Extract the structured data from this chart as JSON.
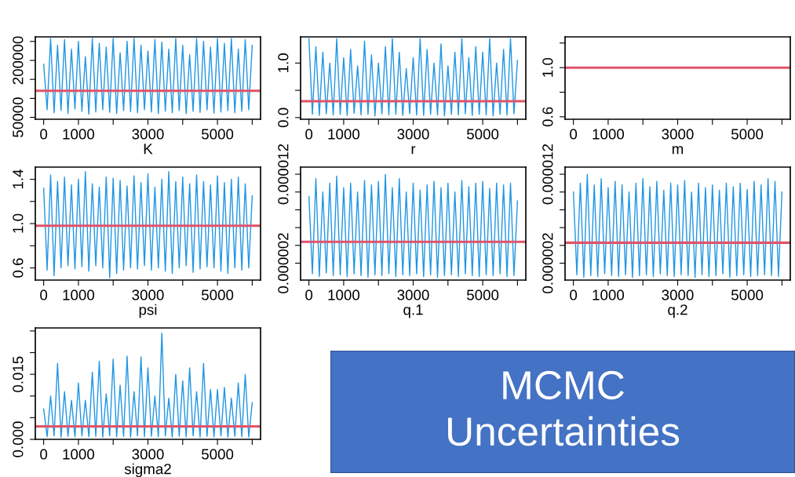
{
  "chart_data": [
    {
      "type": "line",
      "xlabel": "K",
      "xlim": [
        -240,
        6240
      ],
      "xticks": [
        0,
        1000,
        {
          "value": 2000,
          "label": null
        },
        3000,
        {
          "value": 4000,
          "label": null
        },
        5000,
        {
          "value": 6000,
          "label": null
        }
      ],
      "ylim": [
        45000,
        262000
      ],
      "yticks": [
        {
          "value": 50000,
          "label": "50000"
        },
        {
          "value": 100000,
          "label": null
        },
        {
          "value": 150000,
          "label": null
        },
        {
          "value": 200000,
          "label": "200000"
        },
        {
          "value": 250000,
          "label": null
        }
      ],
      "grid": false,
      "legend": false,
      "x": [
        0,
        100,
        200,
        300,
        400,
        500,
        600,
        700,
        800,
        900,
        1000,
        1100,
        1200,
        1300,
        1400,
        1500,
        1600,
        1700,
        1800,
        1900,
        2000,
        2100,
        2200,
        2300,
        2400,
        2500,
        2600,
        2700,
        2800,
        2900,
        3000,
        3100,
        3200,
        3300,
        3400,
        3500,
        3600,
        3700,
        3800,
        3900,
        4000,
        4100,
        4200,
        4300,
        4400,
        4500,
        4600,
        4700,
        4800,
        4900,
        5000,
        5100,
        5200,
        5300,
        5400,
        5500,
        5600,
        5700,
        5800,
        5900,
        6000
      ],
      "series": [
        {
          "color": "#2196e3",
          "values": [
            190000,
            70000,
            258000,
            62000,
            240000,
            68000,
            255000,
            60000,
            230000,
            72000,
            250000,
            66000,
            210000,
            58000,
            258000,
            64000,
            245000,
            70000,
            235000,
            63000,
            258000,
            60000,
            220000,
            68000,
            250000,
            65000,
            258000,
            62000,
            240000,
            70000,
            225000,
            64000,
            255000,
            60000,
            248000,
            66000,
            230000,
            62000,
            258000,
            68000,
            240000,
            60000,
            215000,
            66000,
            258000,
            63000,
            250000,
            70000,
            235000,
            61000,
            258000,
            64000,
            245000,
            68000,
            258000,
            62000,
            230000,
            66000,
            255000,
            70000,
            240000
          ]
        }
      ],
      "ref_lines": [
        {
          "axis": "y",
          "value": 120000,
          "color": "#df536b"
        }
      ]
    },
    {
      "type": "line",
      "xlabel": "r",
      "xlim": [
        -240,
        6240
      ],
      "xticks": [
        0,
        1000,
        {
          "value": 2000,
          "label": null
        },
        3000,
        {
          "value": 4000,
          "label": null
        },
        5000,
        {
          "value": 6000,
          "label": null
        }
      ],
      "ylim": [
        -0.03,
        1.48
      ],
      "yticks": [
        {
          "value": 0,
          "label": "0.0"
        },
        {
          "value": 0.5,
          "label": null
        },
        {
          "value": 1,
          "label": "1.0"
        }
      ],
      "grid": false,
      "legend": false,
      "x": [
        0,
        100,
        200,
        300,
        400,
        500,
        600,
        700,
        800,
        900,
        1000,
        1100,
        1200,
        1300,
        1400,
        1500,
        1600,
        1700,
        1800,
        1900,
        2000,
        2100,
        2200,
        2300,
        2400,
        2500,
        2600,
        2700,
        2800,
        2900,
        3000,
        3100,
        3200,
        3300,
        3400,
        3500,
        3600,
        3700,
        3800,
        3900,
        4000,
        4100,
        4200,
        4300,
        4400,
        4500,
        4600,
        4700,
        4800,
        4900,
        5000,
        5100,
        5200,
        5300,
        5400,
        5500,
        5600,
        5700,
        5800,
        5900,
        6000
      ],
      "series": [
        {
          "color": "#2196e3",
          "values": [
            1.45,
            0.06,
            1.3,
            0.04,
            1.2,
            0.07,
            1.0,
            0.05,
            1.45,
            0.06,
            1.1,
            0.04,
            1.25,
            0.08,
            0.95,
            0.05,
            1.4,
            0.06,
            1.15,
            0.03,
            1.0,
            0.07,
            1.3,
            0.05,
            1.45,
            0.06,
            1.2,
            0.04,
            0.9,
            0.07,
            1.1,
            0.05,
            1.45,
            0.04,
            1.25,
            0.06,
            1.0,
            0.05,
            1.35,
            0.03,
            0.95,
            0.06,
            1.2,
            0.05,
            1.45,
            0.07,
            1.1,
            0.04,
            1.3,
            0.06,
            1.2,
            0.05,
            1.45,
            0.03,
            1.0,
            0.06,
            1.25,
            0.05,
            1.45,
            0.07,
            1.05
          ]
        }
      ],
      "ref_lines": [
        {
          "axis": "y",
          "value": 0.3,
          "color": "#df536b"
        }
      ]
    },
    {
      "type": "line",
      "xlabel": "m",
      "xlim": [
        -240,
        6240
      ],
      "xticks": [
        0,
        1000,
        {
          "value": 2000,
          "label": null
        },
        3000,
        {
          "value": 4000,
          "label": null
        },
        5000,
        {
          "value": 6000,
          "label": null
        }
      ],
      "ylim": [
        0.58,
        1.25
      ],
      "yticks": [
        {
          "value": 0.6,
          "label": "0.6"
        },
        {
          "value": 0.8,
          "label": null
        },
        {
          "value": 1.0,
          "label": "1.0"
        },
        {
          "value": 1.2,
          "label": null
        }
      ],
      "grid": false,
      "legend": false,
      "ref_lines": [
        {
          "axis": "y",
          "value": 1.0,
          "color": "#df536b"
        }
      ]
    },
    {
      "type": "line",
      "xlabel": "psi",
      "xlim": [
        -240,
        6240
      ],
      "xticks": [
        0,
        1000,
        {
          "value": 2000,
          "label": null
        },
        3000,
        {
          "value": 4000,
          "label": null
        },
        5000,
        {
          "value": 6000,
          "label": null
        }
      ],
      "ylim": [
        0.49,
        1.51
      ],
      "yticks": [
        {
          "value": 0.6,
          "label": "0.6"
        },
        {
          "value": 0.8,
          "label": null
        },
        {
          "value": 1.0,
          "label": "1.0"
        },
        {
          "value": 1.2,
          "label": null
        },
        {
          "value": 1.4,
          "label": "1.4"
        }
      ],
      "grid": false,
      "legend": false,
      "x": [
        0,
        100,
        200,
        300,
        400,
        500,
        600,
        700,
        800,
        900,
        1000,
        1100,
        1200,
        1300,
        1400,
        1500,
        1600,
        1700,
        1800,
        1900,
        2000,
        2100,
        2200,
        2300,
        2400,
        2500,
        2600,
        2700,
        2800,
        2900,
        3000,
        3100,
        3200,
        3300,
        3400,
        3500,
        3600,
        3700,
        3800,
        3900,
        4000,
        4100,
        4200,
        4300,
        4400,
        4500,
        4600,
        4700,
        4800,
        4900,
        5000,
        5100,
        5200,
        5300,
        5400,
        5500,
        5600,
        5700,
        5800,
        5900,
        6000
      ],
      "series": [
        {
          "color": "#2196e3",
          "values": [
            1.32,
            0.58,
            1.44,
            0.53,
            1.38,
            0.6,
            1.42,
            0.62,
            1.35,
            0.59,
            1.4,
            0.61,
            1.47,
            0.57,
            1.36,
            0.62,
            1.33,
            0.6,
            1.42,
            0.51,
            1.41,
            0.55,
            1.39,
            0.58,
            1.34,
            0.6,
            1.43,
            0.59,
            1.37,
            0.62,
            1.45,
            0.58,
            1.33,
            0.6,
            1.4,
            0.57,
            1.47,
            0.55,
            1.38,
            0.6,
            1.42,
            0.62,
            1.36,
            0.56,
            1.44,
            0.59,
            1.38,
            0.61,
            1.35,
            0.6,
            1.43,
            0.57,
            1.37,
            0.55,
            1.4,
            0.6,
            1.42,
            0.58,
            1.36,
            0.6,
            1.25
          ]
        }
      ],
      "ref_lines": [
        {
          "axis": "y",
          "value": 0.98,
          "color": "#df536b"
        }
      ]
    },
    {
      "type": "line",
      "xlabel": "q.1",
      "xlim": [
        -240,
        6240
      ],
      "xticks": [
        0,
        1000,
        {
          "value": 2000,
          "label": null
        },
        3000,
        {
          "value": 4000,
          "label": null
        },
        5000,
        {
          "value": 6000,
          "label": null
        }
      ],
      "ylim": [
        1e-07,
        1.28e-05
      ],
      "yticks": [
        {
          "value": 2e-06,
          "label": "0.000002"
        },
        {
          "value": 4e-06,
          "label": null
        },
        {
          "value": 6e-06,
          "label": null
        },
        {
          "value": 8e-06,
          "label": null
        },
        {
          "value": 1e-05,
          "label": null
        },
        {
          "value": 1.2e-05,
          "label": "0.000012"
        }
      ],
      "grid": false,
      "legend": false,
      "x": [
        0,
        100,
        200,
        300,
        400,
        500,
        600,
        700,
        800,
        900,
        1000,
        1100,
        1200,
        1300,
        1400,
        1500,
        1600,
        1700,
        1800,
        1900,
        2000,
        2100,
        2200,
        2300,
        2400,
        2500,
        2600,
        2700,
        2800,
        2900,
        3000,
        3100,
        3200,
        3300,
        3400,
        3500,
        3600,
        3700,
        3800,
        3900,
        4000,
        4100,
        4200,
        4300,
        4400,
        4500,
        4600,
        4700,
        4800,
        4900,
        5000,
        5100,
        5200,
        5300,
        5400,
        5500,
        5600,
        5700,
        5800,
        5900,
        6000
      ],
      "series": [
        {
          "color": "#2196e3",
          "values": [
            9.5e-06,
            8e-07,
            1.15e-05,
            5e-07,
            1e-05,
            9e-07,
            1.1e-05,
            6e-07,
            1.18e-05,
            7e-07,
            1.05e-05,
            5e-07,
            1.1e-05,
            8e-07,
            1e-05,
            6e-07,
            1.13e-05,
            4e-07,
            1.08e-05,
            7e-07,
            1.12e-05,
            6e-07,
            1.2e-05,
            8e-07,
            1.05e-05,
            5e-07,
            1.15e-05,
            7e-07,
            1e-05,
            6e-07,
            1.1e-05,
            8e-07,
            1.02e-05,
            5e-07,
            1.08e-05,
            7e-07,
            1.12e-05,
            4e-07,
            1.05e-05,
            6e-07,
            1.1e-05,
            7e-07,
            1e-05,
            5e-07,
            1.13e-05,
            8e-07,
            1.06e-05,
            6e-07,
            1.1e-05,
            5e-07,
            1.12e-05,
            7e-07,
            1.04e-05,
            6e-07,
            1.1e-05,
            8e-07,
            1.08e-05,
            5e-07,
            1.1e-05,
            6e-07,
            9e-06
          ]
        }
      ],
      "ref_lines": [
        {
          "axis": "y",
          "value": 4.4e-06,
          "color": "#df536b"
        }
      ]
    },
    {
      "type": "line",
      "xlabel": "q.2",
      "xlim": [
        -240,
        6240
      ],
      "xticks": [
        0,
        1000,
        {
          "value": 2000,
          "label": null
        },
        3000,
        {
          "value": 4000,
          "label": null
        },
        5000,
        {
          "value": 6000,
          "label": null
        }
      ],
      "ylim": [
        1e-07,
        1.28e-05
      ],
      "yticks": [
        {
          "value": 2e-06,
          "label": "0.000002"
        },
        {
          "value": 4e-06,
          "label": null
        },
        {
          "value": 6e-06,
          "label": null
        },
        {
          "value": 8e-06,
          "label": null
        },
        {
          "value": 1e-05,
          "label": null
        },
        {
          "value": 1.2e-05,
          "label": "0.000012"
        }
      ],
      "grid": false,
      "legend": false,
      "x": [
        0,
        100,
        200,
        300,
        400,
        500,
        600,
        700,
        800,
        900,
        1000,
        1100,
        1200,
        1300,
        1400,
        1500,
        1600,
        1700,
        1800,
        1900,
        2000,
        2100,
        2200,
        2300,
        2400,
        2500,
        2600,
        2700,
        2800,
        2900,
        3000,
        3100,
        3200,
        3300,
        3400,
        3500,
        3600,
        3700,
        3800,
        3900,
        4000,
        4100,
        4200,
        4300,
        4400,
        4500,
        4600,
        4700,
        4800,
        4900,
        5000,
        5100,
        5200,
        5300,
        5400,
        5500,
        5600,
        5700,
        5800,
        5900,
        6000
      ],
      "series": [
        {
          "color": "#2196e3",
          "values": [
            1e-05,
            7e-07,
            1.1e-05,
            4e-07,
            1.2e-05,
            6e-07,
            1.08e-05,
            5e-07,
            1.15e-05,
            8e-07,
            1.05e-05,
            6e-07,
            1.12e-05,
            5e-07,
            1.08e-05,
            7e-07,
            1e-05,
            4e-07,
            1.1e-05,
            6e-07,
            1.15e-05,
            7e-07,
            1.06e-05,
            5e-07,
            1.12e-05,
            8e-07,
            1.02e-05,
            6e-07,
            1.1e-05,
            5e-07,
            1.08e-05,
            7e-07,
            1.13e-05,
            6e-07,
            1e-05,
            4e-07,
            1.1e-05,
            7e-07,
            1.05e-05,
            5e-07,
            1.08e-05,
            6e-07,
            1.02e-05,
            8e-07,
            1.1e-05,
            4e-07,
            1.06e-05,
            6e-07,
            1.1e-05,
            7e-07,
            1.03e-05,
            5e-07,
            1.12e-05,
            6e-07,
            1.08e-05,
            7e-07,
            1.15e-05,
            6e-07,
            1.12e-05,
            5e-07,
            1e-05
          ]
        }
      ],
      "ref_lines": [
        {
          "axis": "y",
          "value": 4.3e-06,
          "color": "#df536b"
        }
      ]
    },
    {
      "type": "line",
      "xlabel": "sigma2",
      "xlim": [
        -240,
        6240
      ],
      "xticks": [
        0,
        1000,
        {
          "value": 2000,
          "label": null
        },
        3000,
        {
          "value": 4000,
          "label": null
        },
        5000,
        {
          "value": 6000,
          "label": null
        }
      ],
      "ylim": [
        0,
        0.0257
      ],
      "yticks": [
        {
          "value": 0,
          "label": "0.000"
        },
        {
          "value": 0.005,
          "label": null
        },
        {
          "value": 0.01,
          "label": null
        },
        {
          "value": 0.015,
          "label": "0.015"
        },
        {
          "value": 0.02,
          "label": null
        },
        {
          "value": 0.025,
          "label": null
        }
      ],
      "grid": false,
      "legend": false,
      "x": [
        0,
        100,
        200,
        300,
        400,
        500,
        600,
        700,
        800,
        900,
        1000,
        1100,
        1200,
        1300,
        1400,
        1500,
        1600,
        1700,
        1800,
        1900,
        2000,
        2100,
        2200,
        2300,
        2400,
        2500,
        2600,
        2700,
        2800,
        2900,
        3000,
        3100,
        3200,
        3300,
        3400,
        3500,
        3600,
        3700,
        3800,
        3900,
        4000,
        4100,
        4200,
        4300,
        4400,
        4500,
        4600,
        4700,
        4800,
        4900,
        5000,
        5100,
        5200,
        5300,
        5400,
        5500,
        5600,
        5700,
        5800,
        5900,
        6000
      ],
      "series": [
        {
          "color": "#2196e3",
          "values": [
            0.007,
            0.0006,
            0.01,
            0.0008,
            0.0175,
            0.0005,
            0.011,
            0.0007,
            0.009,
            0.0006,
            0.013,
            0.0008,
            0.009,
            0.0006,
            0.0155,
            0.0007,
            0.018,
            0.0005,
            0.0105,
            0.0008,
            0.0185,
            0.0006,
            0.0125,
            0.0007,
            0.0192,
            0.0005,
            0.011,
            0.0008,
            0.019,
            0.0006,
            0.0165,
            0.0007,
            0.01,
            0.0006,
            0.0245,
            0.0008,
            0.0095,
            0.0005,
            0.015,
            0.0007,
            0.0135,
            0.0006,
            0.0165,
            0.0008,
            0.011,
            0.0005,
            0.0175,
            0.0007,
            0.0115,
            0.0006,
            0.0115,
            0.0008,
            0.012,
            0.0005,
            0.0095,
            0.0007,
            0.013,
            0.0006,
            0.015,
            0.0005,
            0.0085
          ]
        }
      ],
      "ref_lines": [
        {
          "axis": "y",
          "value": 0.003,
          "color": "#df536b"
        }
      ]
    },
    {
      "type": "other",
      "title": "MCMC\nUncertainties"
    }
  ]
}
